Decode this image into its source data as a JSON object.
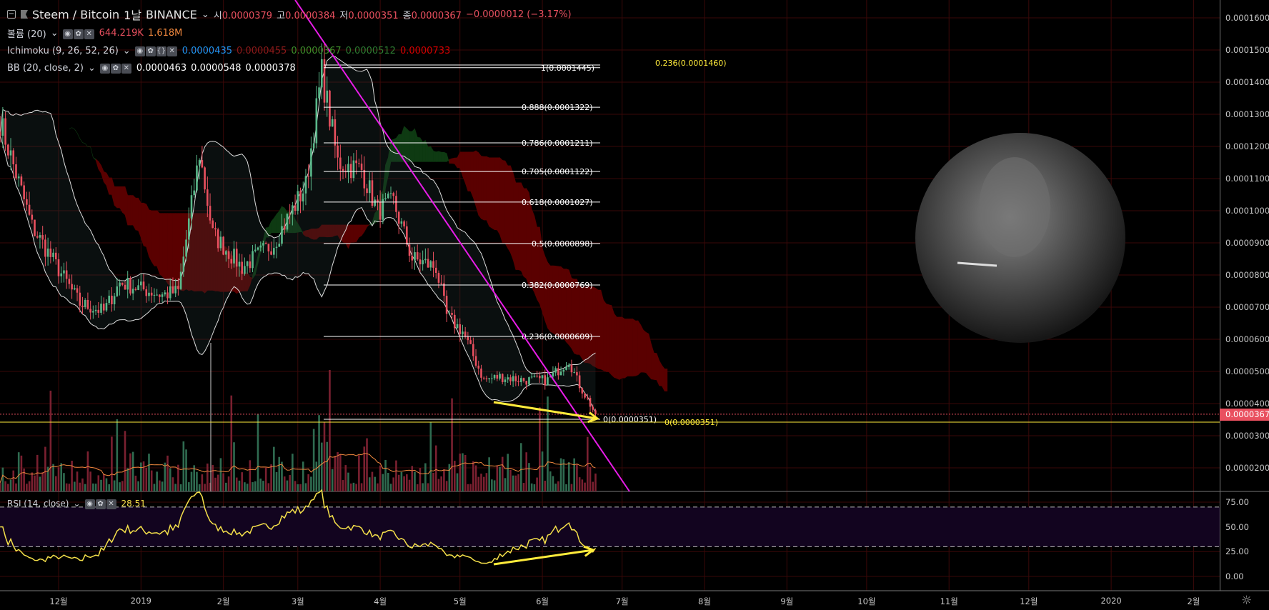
{
  "header": {
    "symbol": "Steem / Bitcoin",
    "interval": "1날",
    "exchange": "BINANCE",
    "open_label": "시",
    "open": "0.0000379",
    "high_label": "고",
    "high": "0.0000384",
    "low_label": "저",
    "low": "0.0000351",
    "close_label": "종",
    "close": "0.0000367",
    "change": "−0.0000012 (−3.17%)"
  },
  "indicators": {
    "volume": {
      "name": "볼륨 (20)",
      "v1": "644.219K",
      "v2": "1.618M"
    },
    "ichimoku": {
      "name": "Ichimoku (9, 26, 52, 26)",
      "v1": "0.0000435",
      "v2": "0.0000455",
      "v3": "0.0000367",
      "v4": "0.0000512",
      "v5": "0.0000733"
    },
    "bb": {
      "name": "BB (20, close, 2)",
      "v1": "0.0000463",
      "v2": "0.0000548",
      "v3": "0.0000378"
    },
    "rsi": {
      "name": "RSI (14, close)",
      "value": "28.51"
    }
  },
  "colors": {
    "up": "#5ab88a",
    "down": "#e9505f",
    "trendline": "#e81ce8",
    "fib": "#ffffff",
    "highlight": "#ffeb3b",
    "volume_ma": "#f0883e",
    "rsi": "#f5e04a",
    "cloud_bear": "#5a0000",
    "cloud_bull": "#0e3a12",
    "grid": "#3a0808"
  },
  "price_axis": {
    "ticks": [
      "0.0000200",
      "0.0000300",
      "0.0000400",
      "0.0000500",
      "0.0000600",
      "0.0000700",
      "0.0000800",
      "0.0000900",
      "0.0001000",
      "0.0001100",
      "0.0001200",
      "0.0001300",
      "0.0001400",
      "0.0001500",
      "0.0001600"
    ],
    "last_price": "0.0000367"
  },
  "rsi_axis": {
    "ticks": [
      "0.00",
      "25.00",
      "50.00",
      "75.00"
    ]
  },
  "time_axis": [
    "12월",
    "2019",
    "2월",
    "3월",
    "4월",
    "5월",
    "6월",
    "7월",
    "8월",
    "9월",
    "10월",
    "11월",
    "12월",
    "2020",
    "2월"
  ],
  "fib_levels": [
    {
      "label": "1(0.0001445)",
      "price": 0.0001445
    },
    {
      "label": "0.888(0.0001322)",
      "price": 0.0001322
    },
    {
      "label": "0.786(0.0001211)",
      "price": 0.0001211
    },
    {
      "label": "0.705(0.0001122)",
      "price": 0.0001122
    },
    {
      "label": "0.618(0.0001027)",
      "price": 0.0001027
    },
    {
      "label": "0.5(0.0000898)",
      "price": 8.98e-05
    },
    {
      "label": "0.382(0.0000769)",
      "price": 7.69e-05
    },
    {
      "label": "0.236(0.0000609)",
      "price": 6.09e-05
    },
    {
      "label": "0(0.0000351)",
      "price": 3.51e-05
    }
  ],
  "fib_yellow": [
    {
      "label": "0.236(0.0001460)",
      "price": 0.000146
    },
    {
      "label": "0(0.0000351)",
      "price": 3.51e-05
    }
  ],
  "chart_data": {
    "type": "candlestick",
    "title": "Steem / Bitcoin",
    "close_path": [
      [
        "2018-11-09",
        0.0001278
      ],
      [
        "2018-11-21",
        9.51e-05
      ],
      [
        "2018-12-09",
        7.11e-05
      ],
      [
        "2018-12-18",
        6.87e-05
      ],
      [
        "2018-12-24",
        7.76e-05
      ],
      [
        "2019-01-09",
        7.38e-05
      ],
      [
        "2019-01-15",
        7.49e-05
      ],
      [
        "2019-01-23",
        0.0001178
      ],
      [
        "2019-01-28",
        9.27e-05
      ],
      [
        "2019-02-08",
        8.24e-05
      ],
      [
        "2019-02-20",
        9e-05
      ],
      [
        "2019-03-04",
        0.0001078
      ],
      [
        "2019-03-10",
        0.0001429
      ],
      [
        "2019-03-16",
        0.0001151
      ],
      [
        "2019-03-25",
        0.0001127
      ],
      [
        "2019-03-31",
        0.0001
      ],
      [
        "2019-04-06",
        0.0001027
      ],
      [
        "2019-04-13",
        8.51e-05
      ],
      [
        "2019-04-22",
        8.24e-05
      ],
      [
        "2019-04-26",
        6.73e-05
      ],
      [
        "2019-05-02",
        6.24e-05
      ],
      [
        "2019-05-10",
        4.73e-05
      ],
      [
        "2019-05-16",
        4.84e-05
      ],
      [
        "2019-05-25",
        4.73e-05
      ],
      [
        "2019-06-03",
        4.73e-05
      ],
      [
        "2019-06-11",
        5.36e-05
      ],
      [
        "2019-06-14",
        4.73e-05
      ],
      [
        "2019-06-21",
        3.67e-05
      ]
    ],
    "y_range": [
      1.2e-05,
      0.000165
    ],
    "rsi_range": [
      -10,
      90
    ],
    "rsi_bands": [
      30,
      70
    ],
    "grid": true
  }
}
